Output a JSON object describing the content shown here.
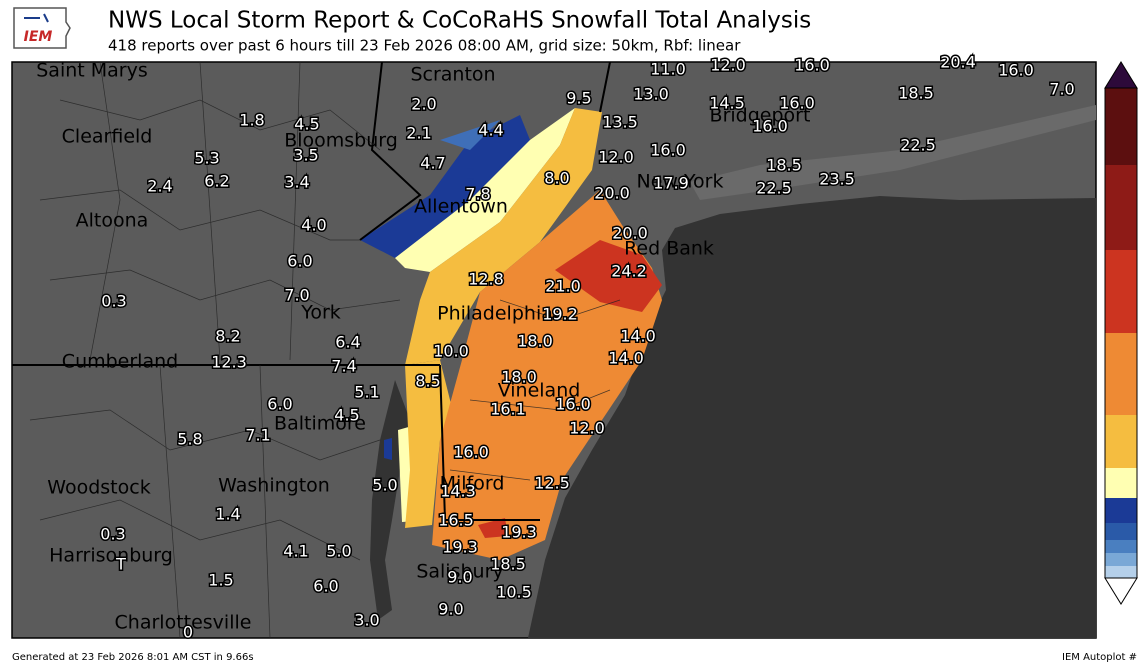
{
  "header": {
    "logo": "IEM",
    "title": "NWS Local Storm Report & CoCoRaHS Snowfall Total Analysis",
    "subtitle": "418 reports over past 6 hours till 23 Feb 2026 08:00 AM, grid size: 50km, Rbf: linear"
  },
  "cities": [
    "Saint Marys",
    "Scranton",
    "Clearfield",
    "Bloomsburg",
    "Bridgeport",
    "Altoona",
    "Allentown",
    "New York",
    "Red Bank",
    "Philadelphia",
    "York",
    "Cumberland",
    "Vineland",
    "Baltimore",
    "Woodstock",
    "Washington",
    "Milford",
    "Harrisonburg",
    "Salisbury",
    "Charlottesville"
  ],
  "reports": [
    "1.8",
    "4.5",
    "2.0",
    "2.1",
    "4.4",
    "4.7",
    "9.5",
    "11.0",
    "12.0",
    "16.0",
    "20.4",
    "16.0",
    "7.0",
    "13.0",
    "14.5",
    "16.0",
    "18.5",
    "13.5",
    "16.0",
    "12.0",
    "16.0",
    "22.5",
    "5.3",
    "3.5",
    "6.2",
    "3.4",
    "2.4",
    "8.0",
    "17.9",
    "18.5",
    "22.5",
    "23.5",
    "7.8",
    "20.0",
    "4.0",
    "20.0",
    "6.0",
    "7.0",
    "24.2",
    "0.3",
    "12.8",
    "21.0",
    "19.2",
    "8.2",
    "6.4",
    "14.0",
    "12.3",
    "7.4",
    "10.0",
    "18.0",
    "14.0",
    "8.5",
    "18.0",
    "5.1",
    "6.0",
    "16.0",
    "4.5",
    "7.1",
    "16.1",
    "12.0",
    "5.8",
    "16.0",
    "5.0",
    "12.5",
    "14.3",
    "1.4",
    "16.5",
    "19.3",
    "0.3",
    "4.1",
    "5.0",
    "19.3",
    "T",
    "18.5",
    "9.0",
    "1.5",
    "6.0",
    "10.5",
    "9.0",
    "3.0",
    "0"
  ],
  "footer": {
    "left": "Generated at 23 Feb 2026 8:01 AM CST in 9.66s",
    "right": "IEM Autoplot #"
  }
}
